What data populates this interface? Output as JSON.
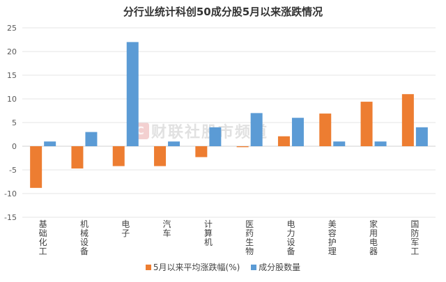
{
  "chart_data": {
    "type": "bar",
    "title": "分行业统计科创50成分股5月以来涨跌情况",
    "categories": [
      "基础化工",
      "机械设备",
      "电子",
      "汽车",
      "计算机",
      "医药生物",
      "电力设备",
      "美容护理",
      "家用电器",
      "国防军工"
    ],
    "series": [
      {
        "name": "5月以来平均涨跌幅(%)",
        "color": "#ED7D31",
        "values": [
          -8.8,
          -4.7,
          -4.2,
          -4.2,
          -2.3,
          -0.2,
          2.1,
          6.9,
          9.4,
          11.0
        ]
      },
      {
        "name": "成分股数量",
        "color": "#5B9BD5",
        "values": [
          1,
          3,
          22,
          1,
          4,
          7,
          6,
          1,
          1,
          4
        ]
      }
    ],
    "yticks": [
      25,
      20,
      15,
      10,
      5,
      0,
      -5,
      -10,
      -15
    ],
    "ylim": [
      -15,
      25
    ],
    "xlabel": "",
    "ylabel": "",
    "grid": true,
    "legend_position": "bottom"
  },
  "watermark": {
    "logo": "C",
    "text": "财联社股市频道"
  }
}
